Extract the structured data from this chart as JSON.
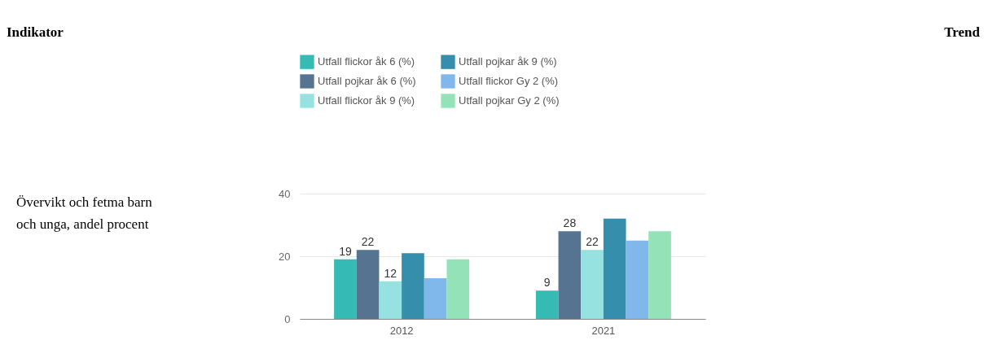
{
  "chart_data": {
    "type": "bar",
    "categories": [
      "2012",
      "2021"
    ],
    "series": [
      {
        "name": "Utfall flickor åk 6 (%)",
        "color": "#2ab7b0",
        "values": [
          19,
          9
        ],
        "value_labels": [
          "19",
          "9"
        ]
      },
      {
        "name": "Utfall pojkar åk 6 (%)",
        "color": "#4d6d8c",
        "values": [
          22,
          28
        ],
        "value_labels": [
          "22",
          "28"
        ]
      },
      {
        "name": "Utfall flickor åk 9 (%)",
        "color": "#8fe0de",
        "values": [
          12,
          22
        ],
        "value_labels": [
          "12",
          "22"
        ]
      },
      {
        "name": "Utfall pojkar åk 9 (%)",
        "color": "#2a88a8",
        "values": [
          21,
          32
        ]
      },
      {
        "name": "Utfall flickor Gy 2 (%)",
        "color": "#79b4ea",
        "values": [
          13,
          25
        ]
      },
      {
        "name": "Utfall pojkar Gy 2 (%)",
        "color": "#8ee0b4",
        "values": [
          19,
          28
        ]
      }
    ],
    "ylim": [
      0,
      40
    ],
    "yticks": [
      0,
      20,
      40
    ],
    "grid": "y",
    "legend": "top",
    "annotations": [
      "Indikator",
      "Trend",
      "Övervikt och fetma barn och unga, andel procent"
    ]
  }
}
